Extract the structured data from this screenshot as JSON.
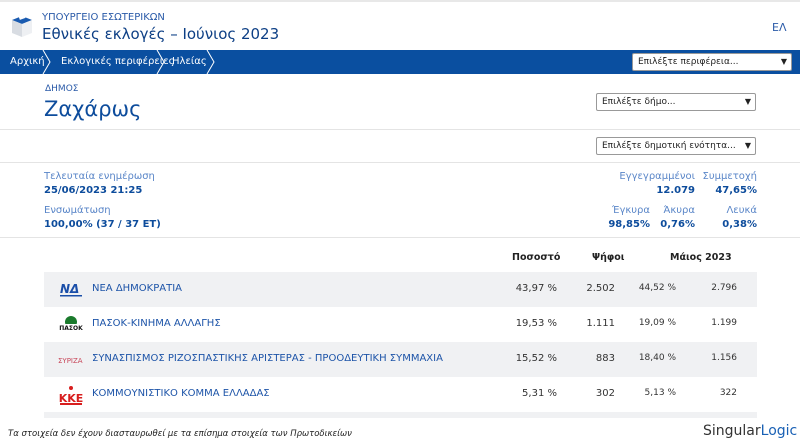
{
  "header": {
    "ministry": "ΥΠΟΥΡΓΕΙΟ ΕΣΩΤΕΡΙΚΩΝ",
    "title": "Εθνικές εκλογές – Ιούνιος 2023",
    "lang": "ΕΛ"
  },
  "breadcrumb": [
    "Αρχική",
    "Εκλογικές περιφέρειες",
    "Ηλείας"
  ],
  "region_select": "Επιλέξτε περιφέρεια...",
  "municipality": {
    "label": "ΔΗΜΟΣ",
    "name": "Ζαχάρως",
    "select": "Επιλέξτε δήμο...",
    "unit_select": "Επιλέξτε δημοτική ενότητα..."
  },
  "stats": {
    "last_update_label": "Τελευταία ενημέρωση",
    "last_update": "25/06/2023 21:25",
    "integration_label": "Ενσωμάτωση",
    "integration": "100,00% (37 / 37 ΕΤ)",
    "registered_label": "Εγγεγραμμένοι",
    "registered": "12.079",
    "turnout_label": "Συμμετοχή",
    "turnout": "47,65%",
    "valid_label": "Έγκυρα",
    "valid": "98,85%",
    "invalid_label": "Άκυρα",
    "invalid": "0,76%",
    "blank_label": "Λευκά",
    "blank": "0,38%"
  },
  "table": {
    "headers": {
      "percent": "Ποσοστό",
      "votes": "Ψήφοι",
      "previous": "Μάιος 2023"
    },
    "rows": [
      {
        "party": "ΝΕΑ ΔΗΜΟΚΡΑΤΙΑ",
        "logo": "ΝΔ",
        "percent": "43,97 %",
        "votes": "2.502",
        "prev_percent": "44,52 %",
        "prev_votes": "2.796"
      },
      {
        "party": "ΠΑΣΟΚ-ΚΙΝΗΜΑ ΑΛΛΑΓΗΣ",
        "logo": "ΠΑΣΟΚ",
        "percent": "19,53 %",
        "votes": "1.111",
        "prev_percent": "19,09 %",
        "prev_votes": "1.199"
      },
      {
        "party": "ΣΥΝΑΣΠΙΣΜΟΣ ΡΙΖΟΣΠΑΣΤΙΚΗΣ ΑΡΙΣΤΕΡΑΣ - ΠΡΟΟΔΕΥΤΙΚΗ ΣΥΜΜΑΧΙΑ",
        "logo": "ΣΥΡΙΖΑ",
        "percent": "15,52 %",
        "votes": "883",
        "prev_percent": "18,40 %",
        "prev_votes": "1.156"
      },
      {
        "party": "ΚΟΜΜΟΥΝΙΣΤΙΚΟ ΚΟΜΜΑ ΕΛΛΑΔΑΣ",
        "logo": "ΚΚΕ",
        "percent": "5,31 %",
        "votes": "302",
        "prev_percent": "5,13 %",
        "prev_votes": "322"
      }
    ]
  },
  "footer": {
    "disclaimer": "Τα στοιχεία δεν έχουν διασταυρωθεί με τα επίσημα στοιχεία των Πρωτοδικείων",
    "brand_a": "Singular",
    "brand_b": "Logic"
  }
}
